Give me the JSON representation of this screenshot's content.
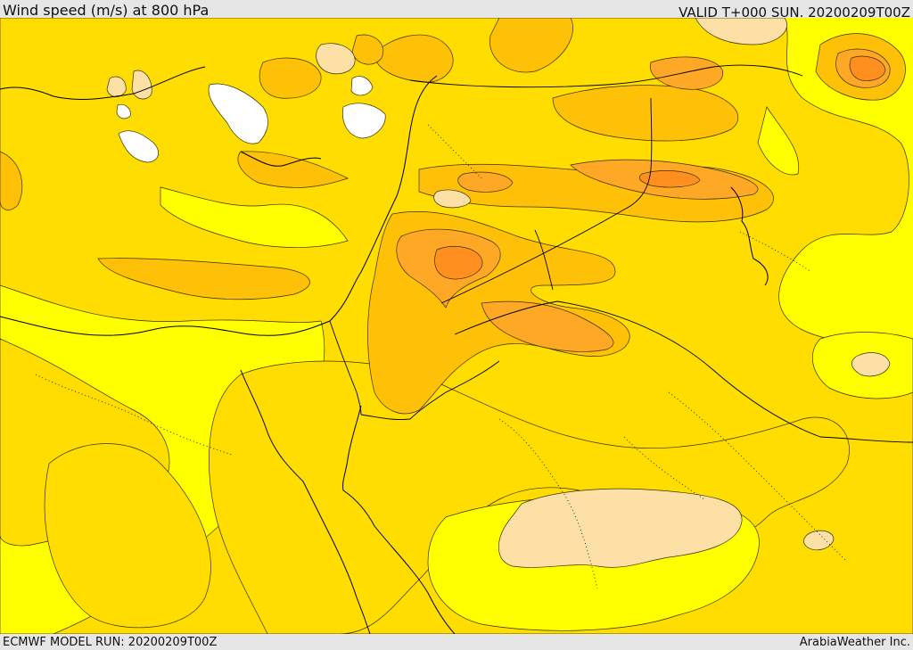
{
  "header": {
    "title": "Wind speed (m/s) at 800 hPa",
    "valid": "VALID T+000 SUN. 20200209T00Z"
  },
  "footer": {
    "model_run": "ECMWF MODEL RUN: 20200209T00Z",
    "provider": "ArabiaWeather Inc."
  },
  "map": {
    "colors": {
      "background": "#ffff00",
      "level_1": "#ffdd00",
      "level_2": "#ffc107",
      "level_3": "#ffa826",
      "level_4": "#ff9020",
      "pale": "#fde0a6",
      "white": "#ffffff",
      "line": "#000000"
    }
  }
}
